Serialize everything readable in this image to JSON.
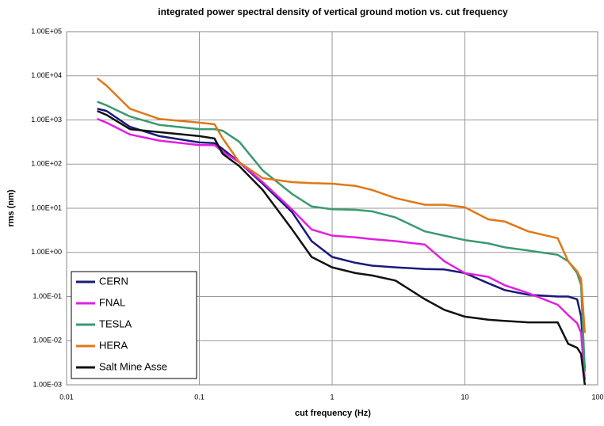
{
  "chart_data": {
    "type": "line",
    "title": "integrated power spectral density of vertical ground motion vs. cut frequency",
    "x_label": "cut frequency (Hz)",
    "y_label": "rms  (nm)",
    "x_log": true,
    "y_log": true,
    "grid": true,
    "legend": "lower left",
    "x": [
      0.017,
      0.02,
      0.03,
      0.05,
      0.1,
      0.13,
      0.15,
      0.2,
      0.3,
      0.5,
      0.7,
      1,
      1.5,
      2,
      3,
      5,
      7,
      10,
      15,
      20,
      30,
      50,
      60,
      70,
      75,
      80
    ],
    "xlim": [
      0.01,
      100
    ],
    "xticks": [
      0.01,
      0.1,
      1,
      10,
      100
    ],
    "ylim": [
      0.001,
      100000
    ],
    "yticks": [
      {
        "value": 0.001,
        "label": "1.00E-03"
      },
      {
        "value": 0.01,
        "label": "1.00E-02"
      },
      {
        "value": 0.1,
        "label": "1.00E-01"
      },
      {
        "value": 1,
        "label": "1.00E+00"
      },
      {
        "value": 10,
        "label": "1.00E+01"
      },
      {
        "value": 100,
        "label": "1.00E+02"
      },
      {
        "value": 1000,
        "label": "1.00E+03"
      },
      {
        "value": 10000,
        "label": "1.00E+04"
      },
      {
        "value": 100000,
        "label": "1.00E+05"
      }
    ],
    "series": [
      {
        "name": "CERN",
        "color": "#1a1a7a",
        "values": [
          1800,
          1600,
          700,
          430,
          310,
          300,
          220,
          110,
          36,
          8.1,
          1.8,
          0.79,
          0.58,
          0.5,
          0.46,
          0.42,
          0.41,
          0.34,
          0.2,
          0.14,
          0.11,
          0.1,
          0.1,
          0.087,
          0.035,
          0.0024
        ]
      },
      {
        "name": "FNAL",
        "color": "#e020e0",
        "values": [
          1060,
          870,
          470,
          340,
          270,
          270,
          190,
          110,
          39,
          9.3,
          3.3,
          2.4,
          2.2,
          2,
          1.8,
          1.5,
          0.63,
          0.34,
          0.28,
          0.18,
          0.12,
          0.065,
          0.038,
          0.025,
          0.015,
          0.0013
        ]
      },
      {
        "name": "TESLA",
        "color": "#3a9a70",
        "values": [
          2600,
          2150,
          1200,
          770,
          620,
          620,
          570,
          320,
          72,
          21,
          11,
          9.5,
          9.2,
          8.5,
          6.2,
          3,
          2.4,
          1.9,
          1.6,
          1.3,
          1.1,
          0.88,
          0.63,
          0.34,
          0.18,
          0.002
        ]
      },
      {
        "name": "HERA",
        "color": "#e07818",
        "values": [
          8800,
          6000,
          1800,
          1050,
          870,
          800,
          380,
          110,
          48,
          39,
          37,
          36,
          32,
          26,
          17,
          12,
          12,
          10.5,
          5.6,
          5,
          3,
          2.1,
          0.63,
          0.37,
          0.25,
          0.015
        ]
      },
      {
        "name": "Salt Mine Asse",
        "color": "#111111",
        "values": [
          1600,
          1300,
          620,
          530,
          430,
          380,
          170,
          90,
          26,
          3.3,
          0.79,
          0.46,
          0.34,
          0.3,
          0.23,
          0.087,
          0.05,
          0.035,
          0.03,
          0.028,
          0.026,
          0.026,
          0.0085,
          0.0069,
          0.005,
          0.001
        ]
      }
    ]
  }
}
